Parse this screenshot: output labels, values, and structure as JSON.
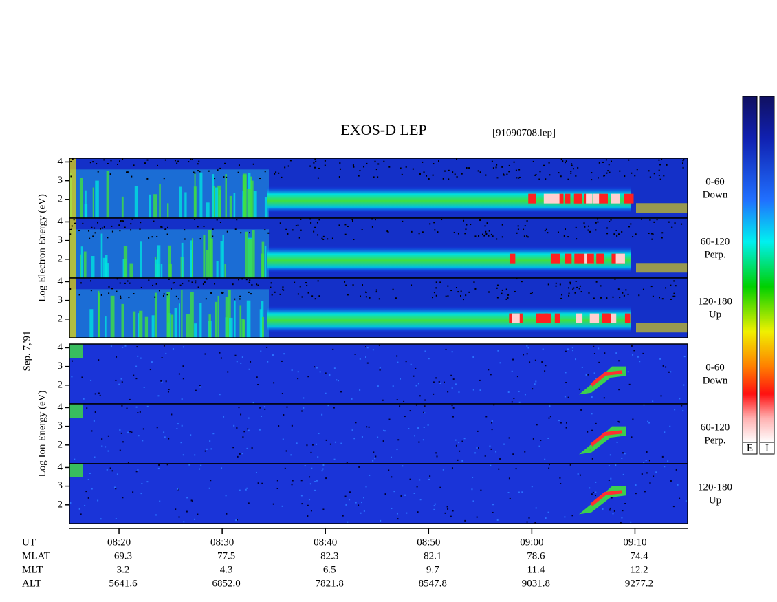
{
  "chart_data": {
    "type": "spectrogram",
    "title": "EXOS-D LEP",
    "subtitle": "[91090708.lep]",
    "date_label": "Sep. 7,'91",
    "ylim": [
      1,
      4.2
    ],
    "yticks": [
      2,
      3,
      4
    ],
    "xlim": [
      495.2,
      555.1
    ],
    "xticks": [
      {
        "value": 500,
        "label": "08:20"
      },
      {
        "value": 510,
        "label": "08:30"
      },
      {
        "value": 520,
        "label": "08:40"
      },
      {
        "value": 530,
        "label": "08:50"
      },
      {
        "value": 540,
        "label": "09:00"
      },
      {
        "value": 550,
        "label": "09:10"
      }
    ],
    "groups": [
      {
        "ylabel": "Log Electron Energy (eV)",
        "panels": [
          {
            "labels": [
              "0-60",
              "Down"
            ]
          },
          {
            "labels": [
              "60-120",
              "Perp."
            ]
          },
          {
            "labels": [
              "120-180",
              "Up"
            ]
          }
        ]
      },
      {
        "ylabel": "Log Ion Energy (eV)",
        "panels": [
          {
            "labels": [
              "0-60",
              "Down"
            ]
          },
          {
            "labels": [
              "60-120",
              "Perp."
            ]
          },
          {
            "labels": [
              "120-180",
              "Up"
            ]
          }
        ]
      }
    ],
    "ephemeris": {
      "time_label": "UT",
      "rows": [
        {
          "name": "MLAT",
          "values": [
            "69.3",
            "77.5",
            "82.3",
            "82.1",
            "78.6",
            "74.4"
          ]
        },
        {
          "name": "MLT",
          "values": [
            "3.2",
            "4.3",
            "6.5",
            "9.7",
            "11.4",
            "12.2"
          ]
        },
        {
          "name": "ALT",
          "values": [
            "5641.6",
            "6852.0",
            "7821.8",
            "8547.8",
            "9031.8",
            "9277.2"
          ]
        }
      ]
    },
    "colorbars": [
      "E",
      "I"
    ]
  }
}
